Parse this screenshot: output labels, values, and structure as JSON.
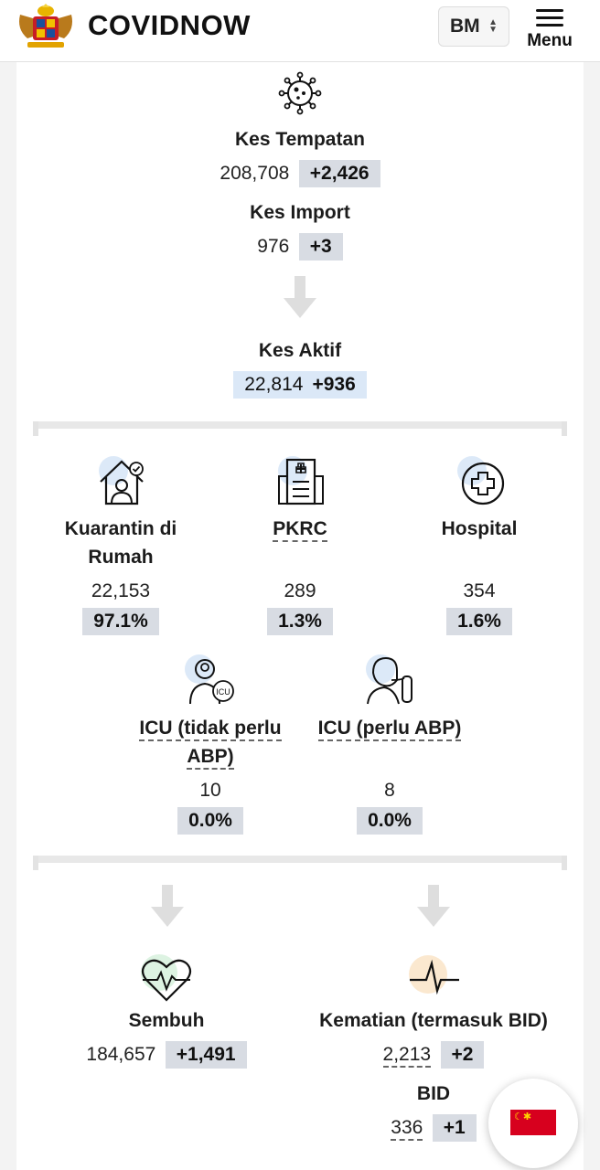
{
  "header": {
    "brand": "COVIDNOW",
    "language": "BM",
    "menu_label": "Menu"
  },
  "kes_tempatan": {
    "title": "Kes Tempatan",
    "value": "208,708",
    "delta": "+2,426"
  },
  "kes_import": {
    "title": "Kes Import",
    "value": "976",
    "delta": "+3"
  },
  "kes_aktif": {
    "title": "Kes Aktif",
    "value": "22,814",
    "delta": "+936"
  },
  "facilities": [
    {
      "title_line1": "Kuarantin di",
      "title_line2": "Rumah",
      "value": "22,153",
      "pct": "97.1%",
      "icon": "home-quarantine-icon"
    },
    {
      "title": "PKRC",
      "value": "289",
      "pct": "1.3%",
      "icon": "hospital-building-icon"
    },
    {
      "title": "Hospital",
      "value": "354",
      "pct": "1.6%",
      "icon": "medical-cross-icon"
    }
  ],
  "icu": [
    {
      "title_line1": "ICU (tidak perlu",
      "title_line2": "ABP)",
      "value": "10",
      "pct": "0.0%",
      "icon": "doctor-icu-icon"
    },
    {
      "title": "ICU (perlu ABP)",
      "value": "8",
      "pct": "0.0%",
      "icon": "ventilator-patient-icon"
    }
  ],
  "sembuh": {
    "title": "Sembuh",
    "value": "184,657",
    "delta": "+1,491",
    "icon": "heart-pulse-icon"
  },
  "kematian": {
    "title": "Kematian (termasuk BID)",
    "value": "2,213",
    "delta": "+2",
    "icon": "pulse-line-icon"
  },
  "bid": {
    "title": "BID",
    "value": "336",
    "delta": "+1"
  },
  "colors": {
    "chip_gray": "#d8dce3",
    "chip_blue": "#dbe8f7",
    "icon_bg_blue": "#dce9f8",
    "icon_bg_green": "#ddf3e2",
    "icon_bg_orange": "#fbe8cf",
    "flag_red": "#d7001e"
  }
}
